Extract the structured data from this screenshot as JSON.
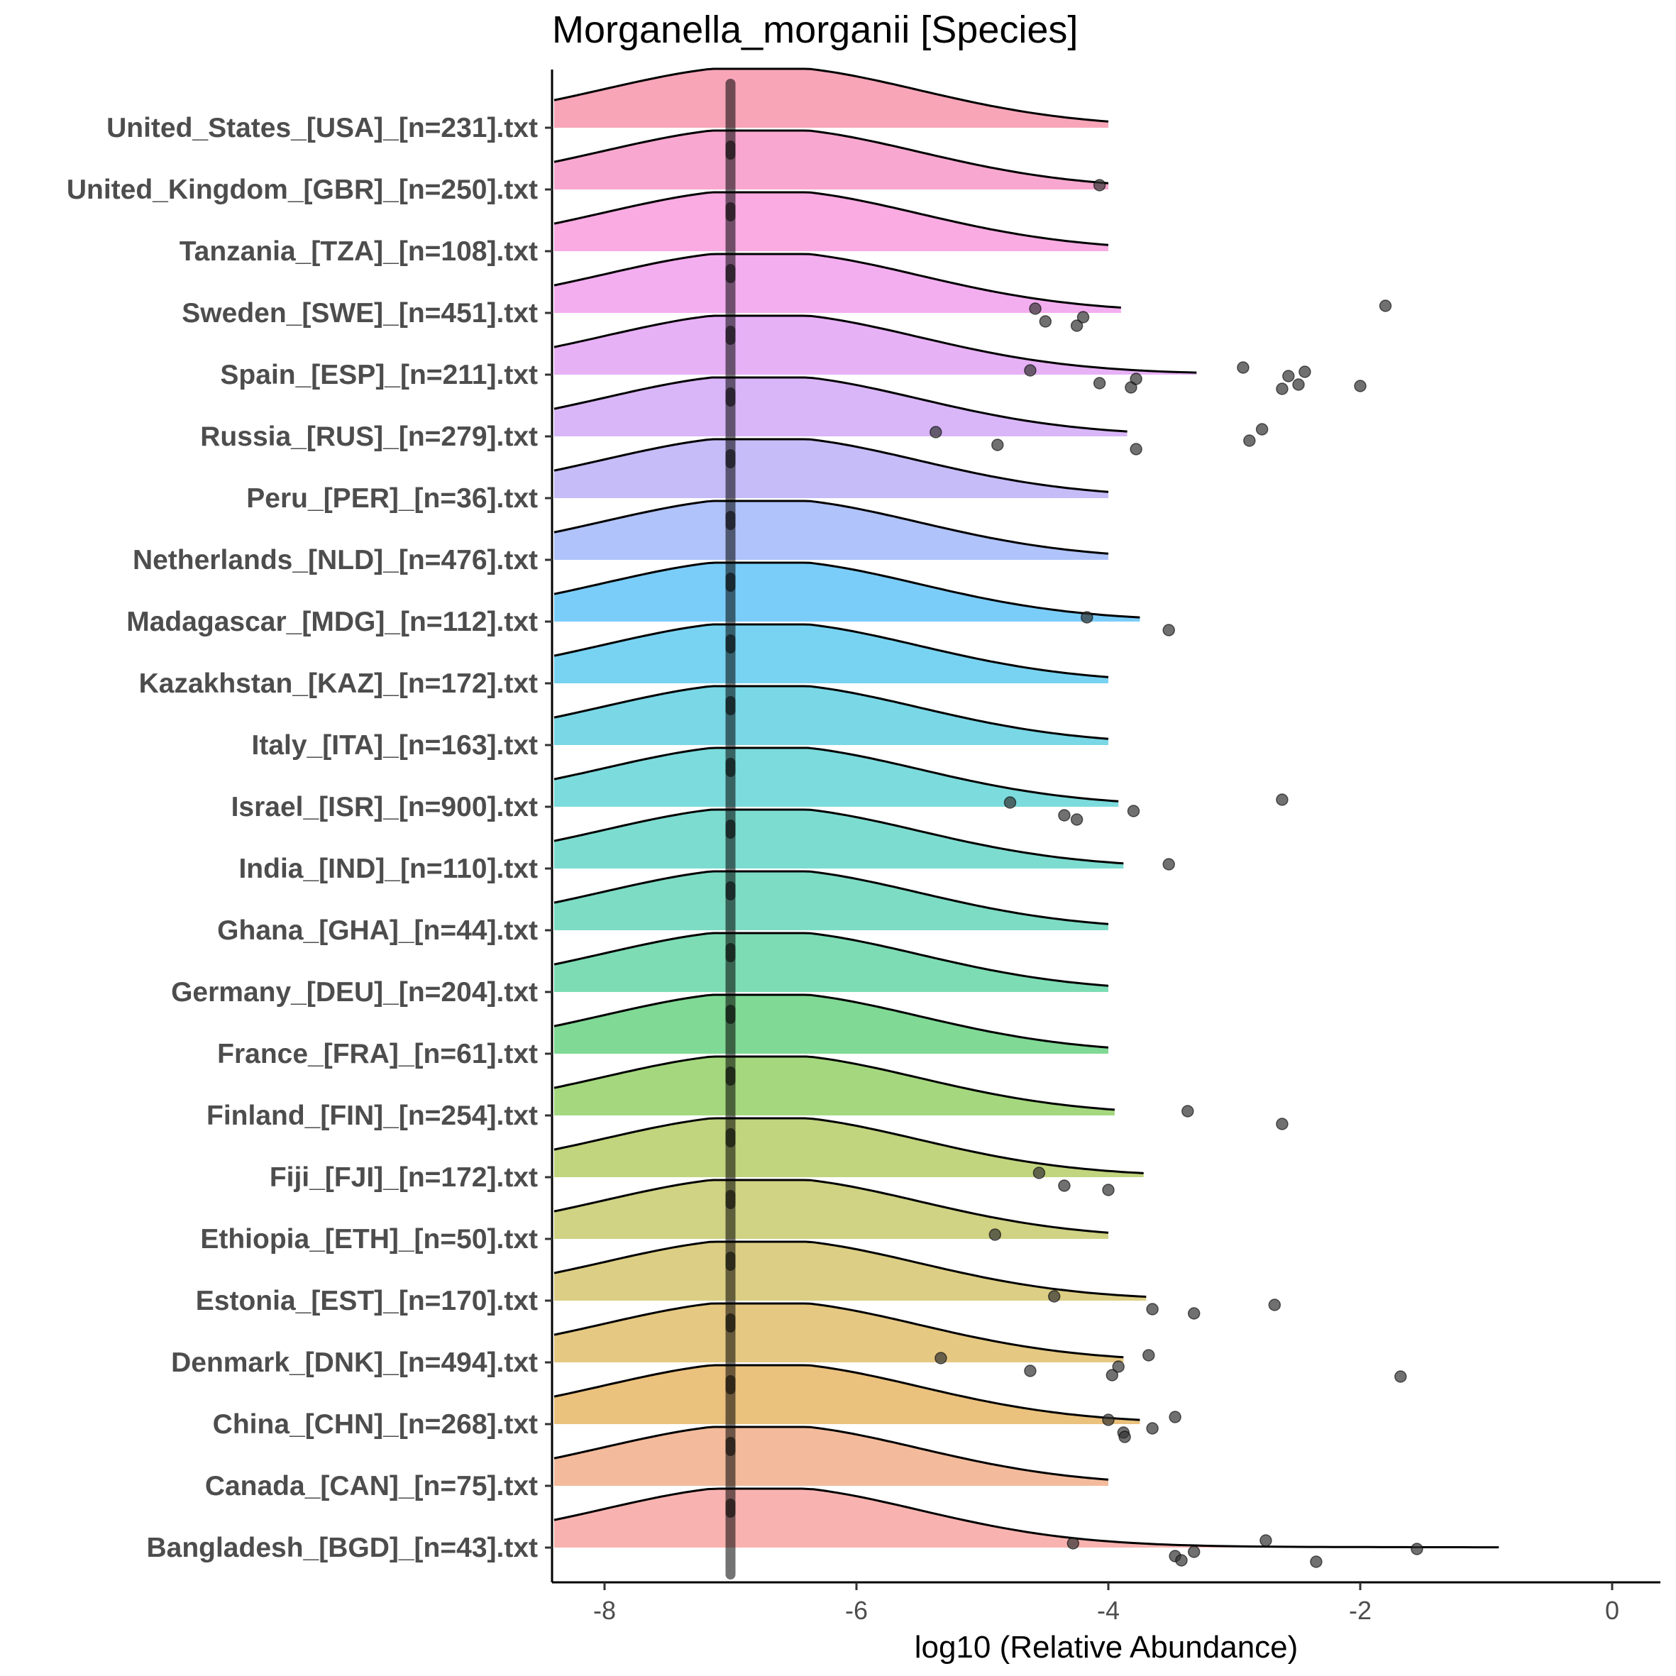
{
  "chart_data": {
    "type": "ridgeline",
    "title": "Morganella_morganii [Species]",
    "xlabel": "log10 (Relative Abundance)",
    "ylabel": "",
    "xlim": [
      -8.4,
      0.4
    ],
    "xticks": [
      -8,
      -6,
      -4,
      -2,
      0
    ],
    "xtick_labels": [
      "-8",
      "-6",
      "-4",
      "-2",
      "0"
    ],
    "grid": false,
    "legend": "none",
    "point_color": "#333333",
    "median_color": "#000000",
    "categories": [
      "United_States_[USA]_[n=231].txt",
      "United_Kingdom_[GBR]_[n=250].txt",
      "Tanzania_[TZA]_[n=108].txt",
      "Sweden_[SWE]_[n=451].txt",
      "Spain_[ESP]_[n=211].txt",
      "Russia_[RUS]_[n=279].txt",
      "Peru_[PER]_[n=36].txt",
      "Netherlands_[NLD]_[n=476].txt",
      "Madagascar_[MDG]_[n=112].txt",
      "Kazakhstan_[KAZ]_[n=172].txt",
      "Italy_[ITA]_[n=163].txt",
      "Israel_[ISR]_[n=900].txt",
      "India_[IND]_[n=110].txt",
      "Ghana_[GHA]_[n=44].txt",
      "Germany_[DEU]_[n=204].txt",
      "France_[FRA]_[n=61].txt",
      "Finland_[FIN]_[n=254].txt",
      "Fiji_[FJI]_[n=172].txt",
      "Ethiopia_[ETH]_[n=50].txt",
      "Estonia_[EST]_[n=170].txt",
      "Denmark_[DNK]_[n=494].txt",
      "China_[CHN]_[n=268].txt",
      "Canada_[CAN]_[n=75].txt",
      "Bangladesh_[BGD]_[n=43].txt"
    ],
    "series": [
      {
        "fill": "#f8a5b8",
        "median": -7.0,
        "density_max_x": -4.0,
        "outliers": []
      },
      {
        "fill": "#f8a8d0",
        "median": -7.0,
        "density_max_x": -4.0,
        "outliers": [
          -4.07
        ]
      },
      {
        "fill": "#f9abe2",
        "median": -7.0,
        "density_max_x": -4.0,
        "outliers": []
      },
      {
        "fill": "#f3aef0",
        "median": -7.0,
        "density_max_x": -3.9,
        "outliers": [
          -4.58,
          -4.5,
          -4.25,
          -4.2,
          -1.8
        ]
      },
      {
        "fill": "#e7b1f6",
        "median": -7.0,
        "density_max_x": -3.3,
        "outliers": [
          -4.62,
          -4.07,
          -3.82,
          -3.78,
          -2.93,
          -2.62,
          -2.57,
          -2.49,
          -2.44,
          -2.0
        ]
      },
      {
        "fill": "#d8b6f8",
        "median": -7.0,
        "density_max_x": -3.85,
        "outliers": [
          -5.37,
          -4.88,
          -3.78,
          -2.88,
          -2.78
        ]
      },
      {
        "fill": "#c6bcf8",
        "median": -7.0,
        "density_max_x": -4.0,
        "outliers": []
      },
      {
        "fill": "#b0c3fa",
        "median": -7.0,
        "density_max_x": -4.0,
        "outliers": []
      },
      {
        "fill": "#7bcdf9",
        "median": -7.0,
        "density_max_x": -3.75,
        "outliers": [
          -4.17,
          -3.52
        ]
      },
      {
        "fill": "#78d3f2",
        "median": -7.0,
        "density_max_x": -4.0,
        "outliers": []
      },
      {
        "fill": "#79d7e6",
        "median": -7.0,
        "density_max_x": -4.0,
        "outliers": []
      },
      {
        "fill": "#7cdbdc",
        "median": -7.0,
        "density_max_x": -3.92,
        "outliers": [
          -4.78,
          -4.35,
          -4.25,
          -3.8,
          -2.62
        ]
      },
      {
        "fill": "#7ddcd0",
        "median": -7.0,
        "density_max_x": -3.88,
        "outliers": [
          -3.52
        ]
      },
      {
        "fill": "#7ddcc4",
        "median": -7.0,
        "density_max_x": -4.0,
        "outliers": []
      },
      {
        "fill": "#7ddcb4",
        "median": -7.0,
        "density_max_x": -4.0,
        "outliers": []
      },
      {
        "fill": "#80d995",
        "median": -7.0,
        "density_max_x": -4.0,
        "outliers": []
      },
      {
        "fill": "#a5d87e",
        "median": -7.0,
        "density_max_x": -3.95,
        "outliers": [
          -3.37,
          -2.62
        ]
      },
      {
        "fill": "#c1d47e",
        "median": -7.0,
        "density_max_x": -3.72,
        "outliers": [
          -4.55,
          -4.35,
          -4.0
        ]
      },
      {
        "fill": "#d0d284",
        "median": -7.0,
        "density_max_x": -4.0,
        "outliers": [
          -4.9
        ]
      },
      {
        "fill": "#dcce84",
        "median": -7.0,
        "density_max_x": -3.7,
        "outliers": [
          -4.43,
          -3.65,
          -3.32,
          -2.68
        ]
      },
      {
        "fill": "#e5c882",
        "median": -7.0,
        "density_max_x": -3.88,
        "outliers": [
          -5.33,
          -4.62,
          -3.97,
          -3.92,
          -3.68,
          -1.68
        ]
      },
      {
        "fill": "#ebc17e",
        "median": -7.0,
        "density_max_x": -3.75,
        "outliers": [
          -4.0,
          -3.88,
          -3.87,
          -3.65,
          -3.47
        ]
      },
      {
        "fill": "#f3bb9c",
        "median": -7.0,
        "density_max_x": -4.0,
        "outliers": []
      },
      {
        "fill": "#f8b3b0",
        "median": -7.0,
        "density_max_x": -0.9,
        "outliers": [
          -4.28,
          -3.47,
          -3.42,
          -3.32,
          -2.75,
          -2.35,
          -1.55
        ]
      }
    ]
  }
}
